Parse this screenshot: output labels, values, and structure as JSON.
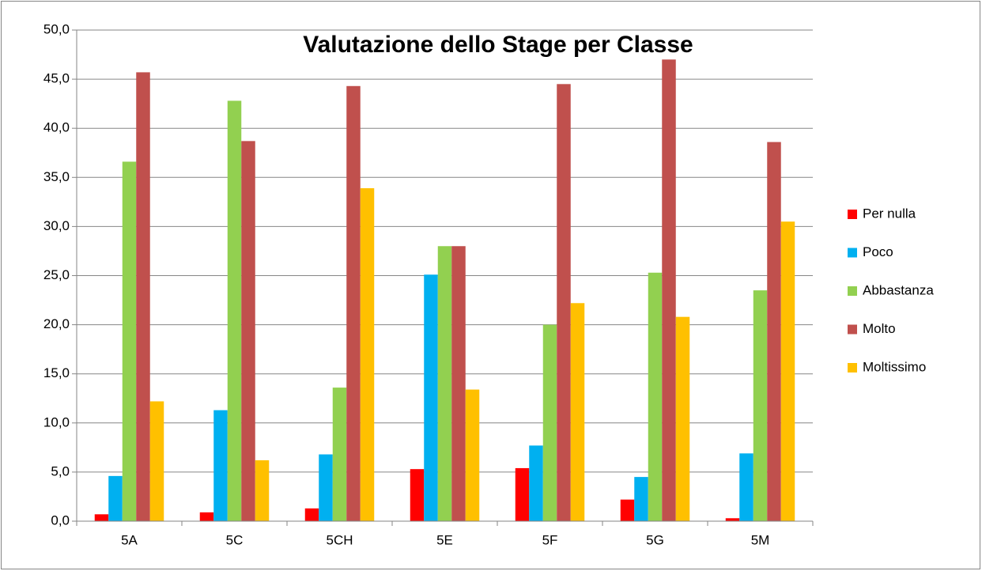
{
  "chart_data": {
    "type": "bar",
    "title": "Valutazione dello Stage per Classe",
    "categories": [
      "5A",
      "5C",
      "5CH",
      "5E",
      "5F",
      "5G",
      "5M"
    ],
    "series": [
      {
        "name": "Per nulla",
        "color": "#ff0000",
        "values": [
          0.7,
          0.9,
          1.3,
          5.3,
          5.4,
          2.2,
          0.3
        ]
      },
      {
        "name": "Poco",
        "color": "#00b0f0",
        "values": [
          4.6,
          11.3,
          6.8,
          25.1,
          7.7,
          4.5,
          6.9
        ]
      },
      {
        "name": "Abbastanza",
        "color": "#92d050",
        "values": [
          36.6,
          42.8,
          13.6,
          28.0,
          20.0,
          25.3,
          23.5
        ]
      },
      {
        "name": "Molto",
        "color": "#c0504d",
        "values": [
          45.7,
          38.7,
          44.3,
          28.0,
          44.5,
          47.0,
          38.6
        ]
      },
      {
        "name": "Moltissimo",
        "color": "#ffc000",
        "values": [
          12.2,
          6.2,
          33.9,
          13.4,
          22.2,
          20.8,
          30.5
        ]
      }
    ],
    "ylim": [
      0,
      50
    ],
    "yticks": [
      {
        "value": 0,
        "label": "0,0"
      },
      {
        "value": 5,
        "label": "5,0"
      },
      {
        "value": 10,
        "label": "10,0"
      },
      {
        "value": 15,
        "label": "15,0"
      },
      {
        "value": 20,
        "label": "20,0"
      },
      {
        "value": 25,
        "label": "25,0"
      },
      {
        "value": 30,
        "label": "30,0"
      },
      {
        "value": 35,
        "label": "35,0"
      },
      {
        "value": 40,
        "label": "40,0"
      },
      {
        "value": 45,
        "label": "45,0"
      },
      {
        "value": 50,
        "label": "50,0"
      }
    ],
    "grid": true,
    "legend": "right"
  }
}
